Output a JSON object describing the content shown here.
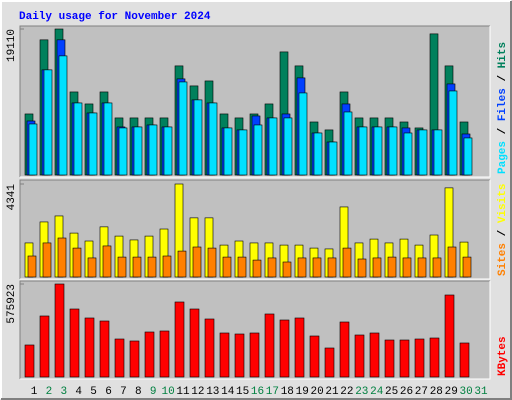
{
  "title": "Daily usage for November 2024",
  "legend_separator": " / ",
  "chart_data": [
    {
      "type": "bar",
      "ylim": [
        0,
        19110
      ],
      "yticks": [
        19110
      ],
      "series": [
        {
          "name": "Hits",
          "color": "#00805c",
          "values": [
            7990,
            17690,
            19110,
            10870,
            9300,
            10870,
            7470,
            7470,
            7470,
            7470,
            14280,
            11660,
            12310,
            7990,
            7470,
            7990,
            9300,
            16110,
            14280,
            6940,
            5900,
            10870,
            7470,
            7470,
            7470,
            6940,
            6160,
            18470,
            14280,
            6940,
            null
          ]
        },
        {
          "name": "Files",
          "color": "#0040ff",
          "values": [
            7070,
            13760,
            17690,
            9430,
            8120,
            9430,
            6290,
            6290,
            6550,
            6290,
            12580,
            9830,
            9430,
            6160,
            5900,
            7730,
            7470,
            7990,
            12710,
            5500,
            4320,
            9300,
            6290,
            6290,
            6290,
            6160,
            5900,
            5900,
            11920,
            5370,
            null
          ]
        },
        {
          "name": "Pages",
          "color": "#00e0ff",
          "values": [
            6680,
            13760,
            15590,
            9430,
            8120,
            9430,
            6160,
            6290,
            6550,
            6290,
            12180,
            9830,
            9430,
            6160,
            5900,
            6550,
            7470,
            7470,
            10740,
            5500,
            4320,
            8250,
            6290,
            6290,
            6290,
            5500,
            5900,
            5900,
            11000,
            4850,
            null
          ]
        }
      ]
    },
    {
      "type": "bar",
      "ylim": [
        0,
        4341
      ],
      "yticks": [
        4341
      ],
      "series": [
        {
          "name": "Visits",
          "color": "#ffff00",
          "values": [
            1590,
            2570,
            2850,
            2050,
            1680,
            2340,
            1910,
            1730,
            1910,
            2240,
            4341,
            2760,
            2760,
            1490,
            1680,
            1590,
            1590,
            1490,
            1490,
            1350,
            1310,
            3270,
            1590,
            1770,
            1590,
            1770,
            1490,
            1960,
            4160,
            1630,
            null
          ]
        },
        {
          "name": "Sites",
          "color": "#ff8000",
          "values": [
            980,
            1590,
            1820,
            1350,
            890,
            1450,
            930,
            930,
            930,
            980,
            1210,
            1400,
            1350,
            930,
            930,
            790,
            890,
            700,
            890,
            890,
            890,
            1350,
            840,
            890,
            930,
            890,
            890,
            890,
            1400,
            930,
            null
          ]
        }
      ]
    },
    {
      "type": "bar",
      "ylim": [
        0,
        575923
      ],
      "yticks": [
        575923
      ],
      "categories": [
        "1",
        "2",
        "3",
        "4",
        "5",
        "6",
        "7",
        "8",
        "9",
        "10",
        "11",
        "12",
        "13",
        "14",
        "15",
        "16",
        "17",
        "18",
        "19",
        "20",
        "21",
        "22",
        "23",
        "24",
        "25",
        "26",
        "27",
        "28",
        "29",
        "30",
        "31"
      ],
      "category_colors": [
        "#000000",
        "#008040",
        "#008040",
        "#000000",
        "#000000",
        "#000000",
        "#000000",
        "#000000",
        "#008040",
        "#008040",
        "#000000",
        "#000000",
        "#000000",
        "#000000",
        "#000000",
        "#008040",
        "#008040",
        "#000000",
        "#000000",
        "#000000",
        "#000000",
        "#000000",
        "#008040",
        "#008040",
        "#000000",
        "#000000",
        "#000000",
        "#000000",
        "#000000",
        "#008040",
        "#008040"
      ],
      "series": [
        {
          "name": "KBytes",
          "color": "#ff0000",
          "values": [
            198200,
            377800,
            575923,
            421100,
            365400,
            346800,
            235300,
            223000,
            278700,
            284900,
            464500,
            421100,
            359200,
            272500,
            266300,
            272500,
            390200,
            353000,
            365400,
            253900,
            179600,
            340600,
            260100,
            272500,
            229100,
            229100,
            235300,
            241500,
            507800,
            210600,
            null
          ]
        }
      ]
    }
  ]
}
